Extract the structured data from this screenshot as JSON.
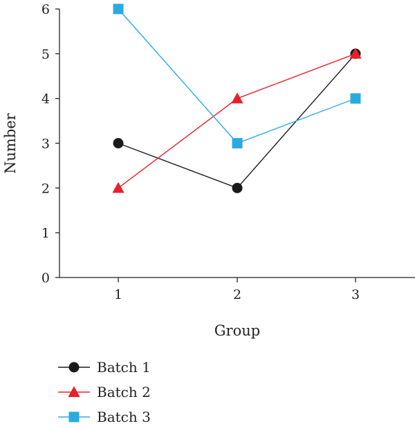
{
  "chart_data": {
    "type": "line",
    "xlabel": "Group",
    "ylabel": "Number",
    "categories": [
      "1",
      "2",
      "3"
    ],
    "yticks": [
      "0",
      "1",
      "2",
      "3",
      "4",
      "5",
      "6"
    ],
    "ylim": [
      0,
      6
    ],
    "grid": false,
    "legend_position": "bottom-left",
    "series": [
      {
        "name": "Batch 1",
        "values": [
          3,
          2,
          5
        ],
        "color": "#1a1a1a",
        "marker": "circle"
      },
      {
        "name": "Batch 2",
        "values": [
          2,
          4,
          5
        ],
        "color": "#e8202a",
        "marker": "triangle"
      },
      {
        "name": "Batch 3",
        "values": [
          6,
          3,
          4
        ],
        "color": "#29abe2",
        "marker": "square"
      }
    ]
  }
}
